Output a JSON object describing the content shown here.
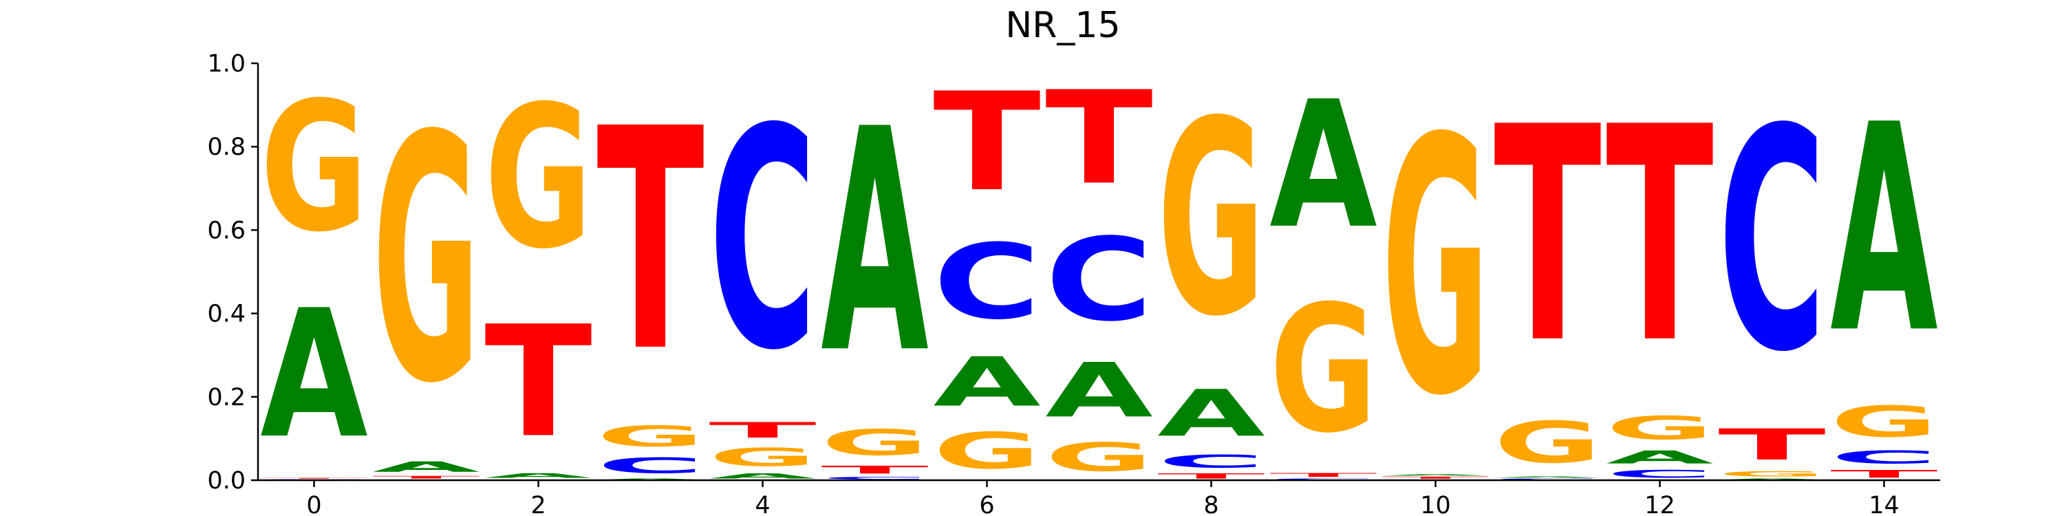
{
  "chart_data": {
    "type": "sequence-logo",
    "title": "NR_15",
    "xlabel": "",
    "ylabel": "",
    "ylim": [
      0,
      1.0
    ],
    "xlim": [
      -0.5,
      14.5
    ],
    "x_ticks": [
      "0",
      "2",
      "4",
      "6",
      "8",
      "10",
      "12",
      "14"
    ],
    "y_ticks": [
      "0.0",
      "0.2",
      "0.4",
      "0.6",
      "0.8",
      "1.0"
    ],
    "colors": {
      "A": "#008000",
      "C": "#0000ff",
      "G": "#ffa500",
      "T": "#ff0000"
    },
    "positions": [
      {
        "pos": 0,
        "stack": [
          [
            "C",
            0.003
          ],
          [
            "T",
            0.003
          ],
          [
            "A",
            0.494
          ],
          [
            "G",
            0.5
          ]
        ]
      },
      {
        "pos": 1,
        "stack": [
          [
            "C",
            0.002
          ],
          [
            "T",
            0.01
          ],
          [
            "A",
            0.04
          ],
          [
            "G",
            0.948
          ]
        ]
      },
      {
        "pos": 2,
        "stack": [
          [
            "C",
            0.002
          ],
          [
            "A",
            0.018
          ],
          [
            "T",
            0.43
          ],
          [
            "G",
            0.55
          ]
        ]
      },
      {
        "pos": 3,
        "stack": [
          [
            "A",
            0.005
          ],
          [
            "C",
            0.06
          ],
          [
            "G",
            0.08
          ],
          [
            "T",
            0.855
          ]
        ]
      },
      {
        "pos": 4,
        "stack": [
          [
            "A",
            0.02
          ],
          [
            "G",
            0.07
          ],
          [
            "T",
            0.06
          ],
          [
            "C",
            0.85
          ]
        ]
      },
      {
        "pos": 5,
        "stack": [
          [
            "C",
            0.01
          ],
          [
            "T",
            0.03
          ],
          [
            "G",
            0.1
          ],
          [
            "A",
            0.86
          ]
        ]
      },
      {
        "pos": 6,
        "stack": [
          [
            "G",
            0.14
          ],
          [
            "A",
            0.19
          ],
          [
            "C",
            0.29
          ],
          [
            "T",
            0.38
          ]
        ]
      },
      {
        "pos": 7,
        "stack": [
          [
            "G",
            0.11
          ],
          [
            "A",
            0.21
          ],
          [
            "C",
            0.32
          ],
          [
            "T",
            0.36
          ]
        ]
      },
      {
        "pos": 8,
        "stack": [
          [
            "T",
            0.02
          ],
          [
            "C",
            0.05
          ],
          [
            "A",
            0.18
          ],
          [
            "G",
            0.75
          ]
        ]
      },
      {
        "pos": 9,
        "stack": [
          [
            "C",
            0.005
          ],
          [
            "T",
            0.015
          ],
          [
            "G",
            0.49
          ],
          [
            "A",
            0.49
          ]
        ]
      },
      {
        "pos": 10,
        "stack": [
          [
            "C",
            0.002
          ],
          [
            "T",
            0.008
          ],
          [
            "A",
            0.005
          ],
          [
            "G",
            0.985
          ]
        ]
      },
      {
        "pos": 11,
        "stack": [
          [
            "C",
            0.005
          ],
          [
            "A",
            0.005
          ],
          [
            "G",
            0.16
          ],
          [
            "T",
            0.83
          ]
        ]
      },
      {
        "pos": 12,
        "stack": [
          [
            "C",
            0.03
          ],
          [
            "A",
            0.05
          ],
          [
            "G",
            0.09
          ],
          [
            "T",
            0.83
          ]
        ]
      },
      {
        "pos": 13,
        "stack": [
          [
            "A",
            0.005
          ],
          [
            "G",
            0.02
          ],
          [
            "T",
            0.12
          ],
          [
            "C",
            0.855
          ]
        ]
      },
      {
        "pos": 14,
        "stack": [
          [
            "T",
            0.03
          ],
          [
            "C",
            0.05
          ],
          [
            "G",
            0.12
          ],
          [
            "A",
            0.8
          ]
        ]
      }
    ]
  }
}
